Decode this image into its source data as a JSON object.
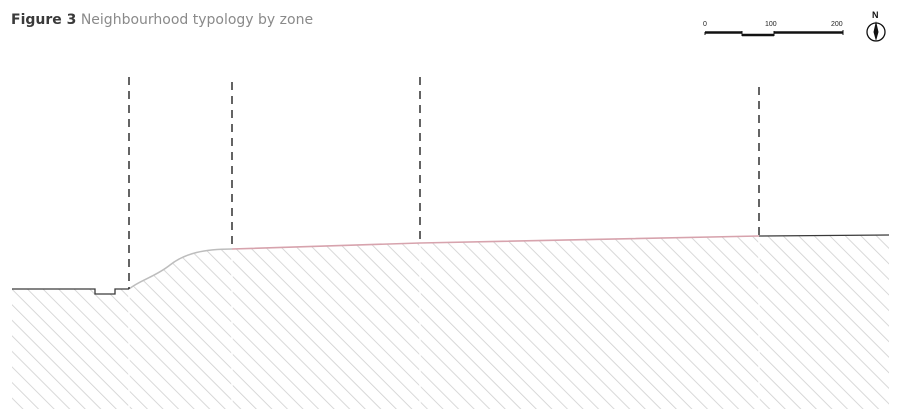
{
  "figure": {
    "number": "Figure 3",
    "title": "Neighbourhood typology by zone"
  },
  "scale_bar": {
    "ticks": [
      "0",
      "100",
      "200"
    ]
  },
  "north_arrow": {
    "label": "N",
    "icon": "north-arrow-icon"
  },
  "colors": {
    "hatch": "#cfcfcf",
    "ground_line": "#3a3a3a",
    "highlight_line": "#d7a3ad",
    "zone_divider": "#222222"
  }
}
